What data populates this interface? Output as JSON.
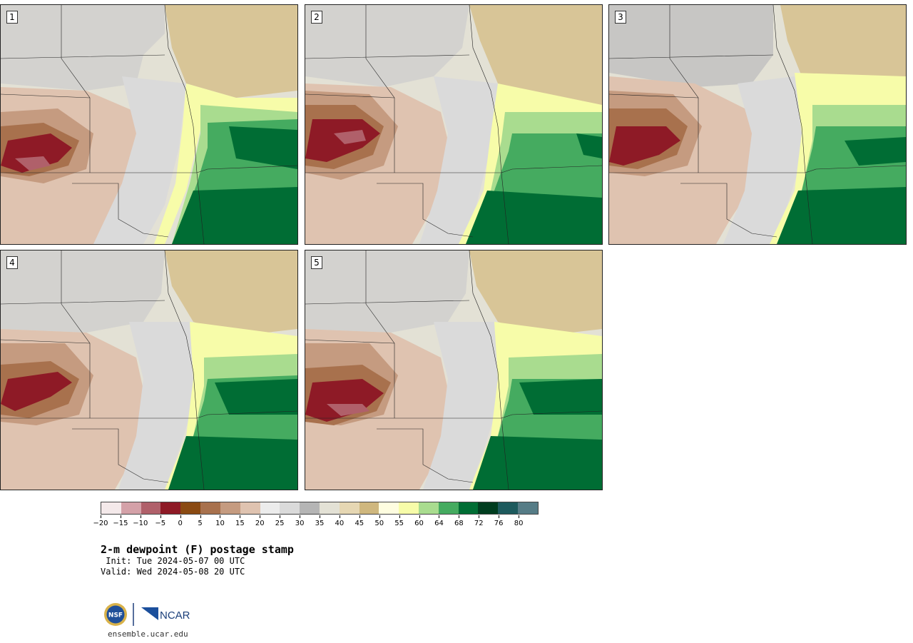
{
  "panels": [
    {
      "label": "1"
    },
    {
      "label": "2"
    },
    {
      "label": "3"
    },
    {
      "label": "4"
    },
    {
      "label": "5"
    }
  ],
  "colorbar": {
    "colors": [
      "#f4e9ea",
      "#d4a1a8",
      "#b0606a",
      "#8e1a26",
      "#8a4a12",
      "#a8714d",
      "#c59b80",
      "#dfc3b0",
      "#ececec",
      "#dadada",
      "#b5b5b5",
      "#e3e1d5",
      "#e6d7b3",
      "#cfb77e",
      "#fefde0",
      "#f7fca9",
      "#a9dc8f",
      "#45ab60",
      "#006d34",
      "#003d1f",
      "#1d5a5d",
      "#567c86"
    ],
    "ticks": [
      "−20",
      "−15",
      "−10",
      "−5",
      "0",
      "5",
      "10",
      "15",
      "20",
      "25",
      "30",
      "35",
      "40",
      "45",
      "50",
      "55",
      "60",
      "64",
      "68",
      "72",
      "76",
      "80"
    ]
  },
  "title": "2-m dewpoint (F) postage stamp",
  "init": " Init: Tue 2024-05-07 00 UTC",
  "valid": "Valid: Wed 2024-05-08 20 UTC",
  "footer": {
    "logo_nsf": "NSF",
    "logo_ncar": "NCAR",
    "website": "ensemble.ucar.edu"
  }
}
